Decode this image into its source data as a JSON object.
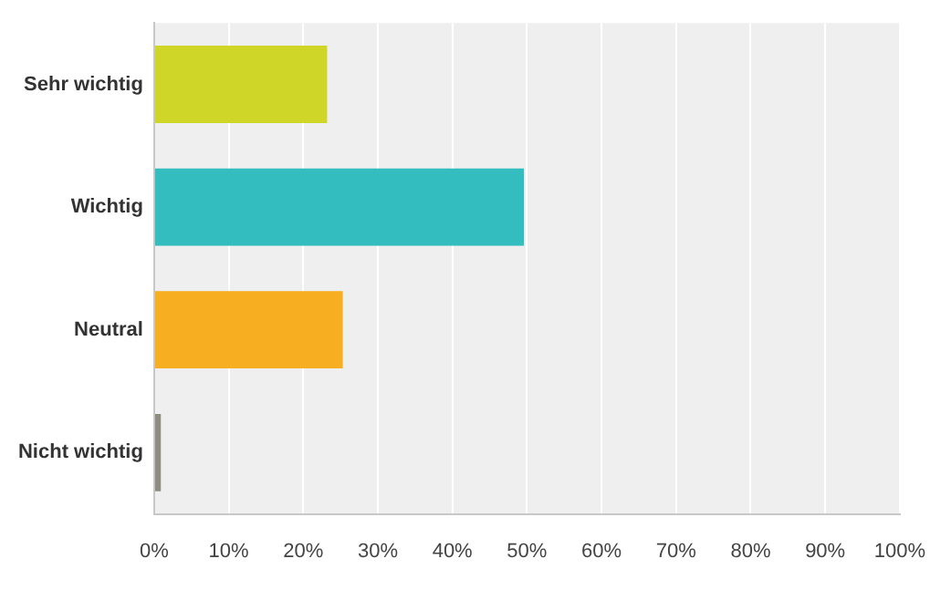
{
  "chart_data": {
    "type": "bar",
    "orientation": "horizontal",
    "categories": [
      "Sehr wichtig",
      "Wichtig",
      "Neutral",
      "Nicht wichtig"
    ],
    "values": [
      23.2,
      49.6,
      25.3,
      0.9
    ],
    "colors": [
      "#d0d627",
      "#33bdbe",
      "#f7ae20",
      "#8c8c80"
    ],
    "xlim": [
      0,
      100
    ],
    "xticks": [
      {
        "value": 0,
        "label": "0%"
      },
      {
        "value": 10,
        "label": "10%"
      },
      {
        "value": 20,
        "label": "20%"
      },
      {
        "value": 30,
        "label": "30%"
      },
      {
        "value": 40,
        "label": "40%"
      },
      {
        "value": 50,
        "label": "50%"
      },
      {
        "value": 60,
        "label": "60%"
      },
      {
        "value": 70,
        "label": "70%"
      },
      {
        "value": 80,
        "label": "80%"
      },
      {
        "value": 90,
        "label": "90%"
      },
      {
        "value": 100,
        "label": "100%"
      }
    ],
    "grid": "x",
    "legend": false
  }
}
